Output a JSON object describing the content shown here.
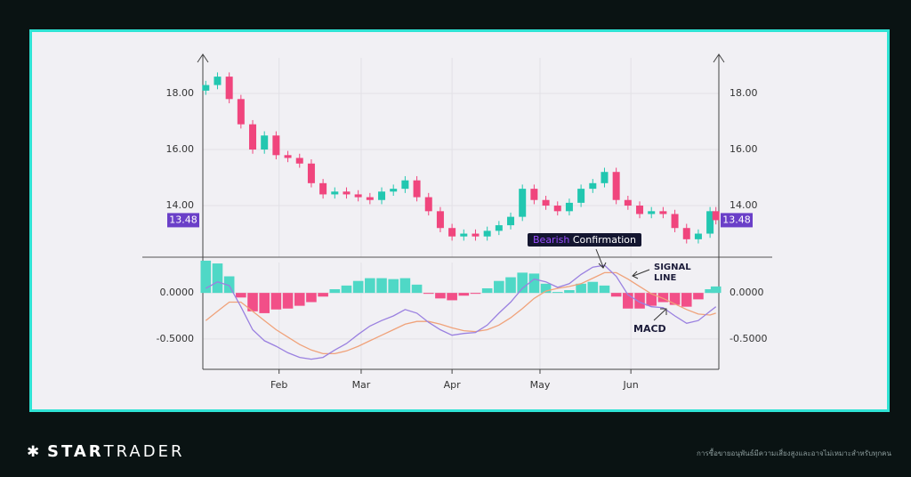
{
  "chart_data": [
    {
      "type": "candlestick",
      "x": [
        7,
        11,
        15,
        19,
        23,
        27,
        31,
        35,
        39,
        43,
        47,
        51,
        55,
        59,
        63,
        67,
        71,
        75,
        79,
        83,
        87,
        91,
        95,
        99,
        103,
        107,
        111,
        115,
        119,
        123,
        127,
        131,
        135,
        139,
        143,
        147,
        151,
        155,
        159,
        163,
        167,
        171,
        175,
        179,
        181
      ],
      "open": [
        18.1,
        18.3,
        18.6,
        17.8,
        16.9,
        16.0,
        16.5,
        15.8,
        15.7,
        15.5,
        14.8,
        14.4,
        14.5,
        14.4,
        14.3,
        14.2,
        14.5,
        14.6,
        14.9,
        14.3,
        13.8,
        13.2,
        12.9,
        13.0,
        12.9,
        13.1,
        13.3,
        13.6,
        14.6,
        14.2,
        14.0,
        13.8,
        14.1,
        14.6,
        14.8,
        15.2,
        14.2,
        14.0,
        13.7,
        13.8,
        13.7,
        13.2,
        12.8,
        13.0,
        13.8
      ],
      "high": [
        18.45,
        18.75,
        18.75,
        17.95,
        17.05,
        16.65,
        16.65,
        15.95,
        15.85,
        15.65,
        14.95,
        14.65,
        14.65,
        14.55,
        14.45,
        14.65,
        14.75,
        15.05,
        15.05,
        14.45,
        13.95,
        13.35,
        13.15,
        13.15,
        13.25,
        13.45,
        13.75,
        14.75,
        14.75,
        14.35,
        14.15,
        14.25,
        14.75,
        14.95,
        15.35,
        15.35,
        14.35,
        14.15,
        13.95,
        13.95,
        13.85,
        13.35,
        13.15,
        13.95,
        13.95
      ],
      "low": [
        17.95,
        18.15,
        17.65,
        16.75,
        15.85,
        15.85,
        15.65,
        15.55,
        15.35,
        14.65,
        14.25,
        14.25,
        14.25,
        14.15,
        14.05,
        14.05,
        14.35,
        14.45,
        14.15,
        13.65,
        13.05,
        12.75,
        12.75,
        12.75,
        12.75,
        12.95,
        13.15,
        13.45,
        14.05,
        13.85,
        13.65,
        13.65,
        13.95,
        14.45,
        14.65,
        14.05,
        13.85,
        13.55,
        13.55,
        13.55,
        13.05,
        12.65,
        12.65,
        12.85,
        13.33
      ],
      "close": [
        18.3,
        18.6,
        17.8,
        16.9,
        16.0,
        16.5,
        15.8,
        15.7,
        15.5,
        14.8,
        14.4,
        14.5,
        14.4,
        14.3,
        14.2,
        14.5,
        14.6,
        14.9,
        14.3,
        13.8,
        13.2,
        12.9,
        13.0,
        12.9,
        13.1,
        13.3,
        13.6,
        14.6,
        14.2,
        14.0,
        13.8,
        14.1,
        14.6,
        14.8,
        15.2,
        14.2,
        14.0,
        13.7,
        13.8,
        13.7,
        13.2,
        12.8,
        13.0,
        13.8,
        13.48
      ],
      "up_color": "#22c7b0",
      "down_color": "#f0457d",
      "label_color": "#6a3fc8",
      "xlim": [
        6,
        182
      ],
      "ylim": [
        12.16,
        19.27
      ],
      "yticks": [
        {
          "value": 14,
          "label": "14.00"
        },
        {
          "value": 16,
          "label": "16.00"
        },
        {
          "value": 18,
          "label": "18.00"
        }
      ],
      "grid": true
    },
    {
      "type": "macd",
      "x": [
        7,
        11,
        15,
        19,
        23,
        27,
        31,
        35,
        39,
        43,
        47,
        51,
        55,
        59,
        63,
        67,
        71,
        75,
        79,
        83,
        87,
        91,
        95,
        99,
        103,
        107,
        111,
        115,
        119,
        123,
        127,
        131,
        135,
        139,
        143,
        147,
        151,
        155,
        159,
        163,
        167,
        171,
        175,
        179,
        181
      ],
      "series": [
        {
          "name": "MACD",
          "color": "#9a80e0",
          "values": [
            0.05,
            0.12,
            0.08,
            -0.15,
            -0.4,
            -0.52,
            -0.58,
            -0.65,
            -0.7,
            -0.72,
            -0.7,
            -0.62,
            -0.55,
            -0.45,
            -0.36,
            -0.3,
            -0.25,
            -0.18,
            -0.22,
            -0.32,
            -0.4,
            -0.46,
            -0.44,
            -0.43,
            -0.35,
            -0.22,
            -0.1,
            0.05,
            0.15,
            0.12,
            0.06,
            0.1,
            0.2,
            0.28,
            0.3,
            0.18,
            -0.02,
            -0.1,
            -0.15,
            -0.16,
            -0.25,
            -0.33,
            -0.3,
            -0.2,
            -0.15
          ]
        },
        {
          "name": "SIGNAL LINE",
          "color": "#f0a27a",
          "values": [
            -0.3,
            -0.2,
            -0.1,
            -0.1,
            -0.2,
            -0.3,
            -0.4,
            -0.48,
            -0.56,
            -0.62,
            -0.66,
            -0.66,
            -0.63,
            -0.58,
            -0.52,
            -0.46,
            -0.4,
            -0.34,
            -0.31,
            -0.31,
            -0.34,
            -0.38,
            -0.41,
            -0.42,
            -0.4,
            -0.35,
            -0.27,
            -0.17,
            -0.06,
            0.02,
            0.05,
            0.07,
            0.1,
            0.16,
            0.22,
            0.22,
            0.15,
            0.07,
            -0.01,
            -0.06,
            -0.12,
            -0.18,
            -0.23,
            -0.24,
            -0.22
          ]
        }
      ],
      "histogram": {
        "pos_color": "#4fd8c6",
        "neg_color": "#f24f88",
        "values": [
          0.35,
          0.32,
          0.18,
          -0.05,
          -0.2,
          -0.22,
          -0.18,
          -0.17,
          -0.14,
          -0.1,
          -0.04,
          0.04,
          0.08,
          0.13,
          0.16,
          0.16,
          0.15,
          0.16,
          0.09,
          -0.01,
          -0.06,
          -0.08,
          -0.03,
          -0.01,
          0.05,
          0.13,
          0.17,
          0.22,
          0.21,
          0.1,
          0.01,
          0.03,
          0.1,
          0.12,
          0.08,
          -0.04,
          -0.17,
          -0.17,
          -0.14,
          -0.1,
          -0.13,
          -0.15,
          -0.07,
          0.04,
          0.07
        ]
      },
      "xlim": [
        6,
        182
      ],
      "ylim": [
        -0.83,
        0.33
      ],
      "xticks": [
        {
          "value": 32,
          "label": "Feb"
        },
        {
          "value": 60,
          "label": "Mar"
        },
        {
          "value": 91,
          "label": "Apr"
        },
        {
          "value": 121,
          "label": "May"
        },
        {
          "value": 152,
          "label": "Jun"
        }
      ],
      "yticks": [
        {
          "value": -0.5,
          "label": "-0.5000"
        },
        {
          "value": 0,
          "label": "0.0000"
        }
      ],
      "annotation": [
        "Bearish",
        "Confirmation"
      ],
      "grid": true
    }
  ],
  "brand": [
    "STAR",
    "TRADER"
  ],
  "disclaimer": "การซื้อขายอนุพันธ์มีความเสี่ยงสูงและอาจไม่เหมาะสำหรับทุกคน"
}
